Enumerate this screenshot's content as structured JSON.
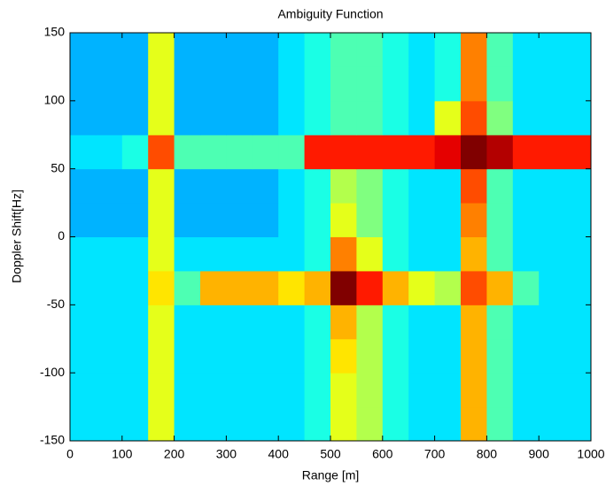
{
  "chart_data": {
    "type": "heatmap",
    "title": "Ambiguity Function",
    "xlabel": "Range [m]",
    "ylabel": "Doppler Shift[Hz]",
    "x_bins": [
      0,
      50,
      100,
      150,
      200,
      250,
      300,
      350,
      400,
      450,
      500,
      550,
      600,
      650,
      700,
      750,
      800,
      850,
      900,
      950,
      1000
    ],
    "y_bins": [
      -150,
      -125,
      -100,
      -75,
      -50,
      -25,
      0,
      25,
      50,
      75,
      100,
      125,
      150
    ],
    "z": [
      [
        0.35,
        0.35,
        0.35,
        0.6,
        0.35,
        0.35,
        0.35,
        0.35,
        0.35,
        0.4,
        0.6,
        0.55,
        0.4,
        0.35,
        0.35,
        0.7,
        0.45,
        0.35,
        0.35,
        0.35
      ],
      [
        0.35,
        0.35,
        0.35,
        0.6,
        0.35,
        0.35,
        0.35,
        0.35,
        0.35,
        0.4,
        0.6,
        0.55,
        0.4,
        0.35,
        0.35,
        0.7,
        0.45,
        0.35,
        0.35,
        0.35
      ],
      [
        0.35,
        0.35,
        0.35,
        0.6,
        0.35,
        0.35,
        0.35,
        0.35,
        0.35,
        0.4,
        0.65,
        0.55,
        0.4,
        0.35,
        0.35,
        0.7,
        0.45,
        0.35,
        0.35,
        0.35
      ],
      [
        0.35,
        0.35,
        0.35,
        0.6,
        0.35,
        0.35,
        0.35,
        0.35,
        0.35,
        0.4,
        0.7,
        0.55,
        0.4,
        0.35,
        0.35,
        0.7,
        0.45,
        0.35,
        0.35,
        0.35
      ],
      [
        0.35,
        0.35,
        0.35,
        0.65,
        0.45,
        0.7,
        0.7,
        0.7,
        0.65,
        0.7,
        1.0,
        0.85,
        0.7,
        0.6,
        0.55,
        0.8,
        0.7,
        0.45,
        0.35,
        0.35
      ],
      [
        0.35,
        0.35,
        0.35,
        0.6,
        0.35,
        0.35,
        0.35,
        0.35,
        0.35,
        0.4,
        0.75,
        0.6,
        0.4,
        0.35,
        0.35,
        0.7,
        0.45,
        0.35,
        0.35,
        0.35
      ],
      [
        0.3,
        0.3,
        0.3,
        0.6,
        0.3,
        0.3,
        0.3,
        0.3,
        0.35,
        0.4,
        0.6,
        0.5,
        0.4,
        0.35,
        0.35,
        0.75,
        0.45,
        0.35,
        0.35,
        0.35
      ],
      [
        0.3,
        0.3,
        0.3,
        0.6,
        0.3,
        0.3,
        0.3,
        0.3,
        0.35,
        0.4,
        0.55,
        0.5,
        0.4,
        0.35,
        0.35,
        0.8,
        0.45,
        0.35,
        0.35,
        0.35
      ],
      [
        0.35,
        0.35,
        0.4,
        0.8,
        0.45,
        0.45,
        0.45,
        0.45,
        0.45,
        0.85,
        0.85,
        0.85,
        0.85,
        0.85,
        0.9,
        1.0,
        0.95,
        0.85,
        0.85,
        0.85
      ],
      [
        0.3,
        0.3,
        0.3,
        0.6,
        0.3,
        0.3,
        0.3,
        0.3,
        0.35,
        0.4,
        0.45,
        0.45,
        0.4,
        0.35,
        0.6,
        0.8,
        0.5,
        0.35,
        0.35,
        0.35
      ],
      [
        0.3,
        0.3,
        0.3,
        0.6,
        0.3,
        0.3,
        0.3,
        0.3,
        0.35,
        0.4,
        0.45,
        0.45,
        0.4,
        0.35,
        0.4,
        0.75,
        0.45,
        0.35,
        0.35,
        0.35
      ],
      [
        0.3,
        0.3,
        0.3,
        0.6,
        0.3,
        0.3,
        0.3,
        0.3,
        0.35,
        0.4,
        0.45,
        0.45,
        0.4,
        0.35,
        0.4,
        0.75,
        0.45,
        0.35,
        0.35,
        0.35
      ]
    ],
    "colormap": "jet",
    "clim": [
      0,
      1
    ],
    "xlim": [
      0,
      1000
    ],
    "xticks": [
      0,
      100,
      200,
      300,
      400,
      500,
      600,
      700,
      800,
      900,
      1000
    ],
    "ylim": [
      -150,
      150
    ],
    "yticks": [
      -150,
      -100,
      -50,
      0,
      50,
      100,
      150
    ]
  }
}
